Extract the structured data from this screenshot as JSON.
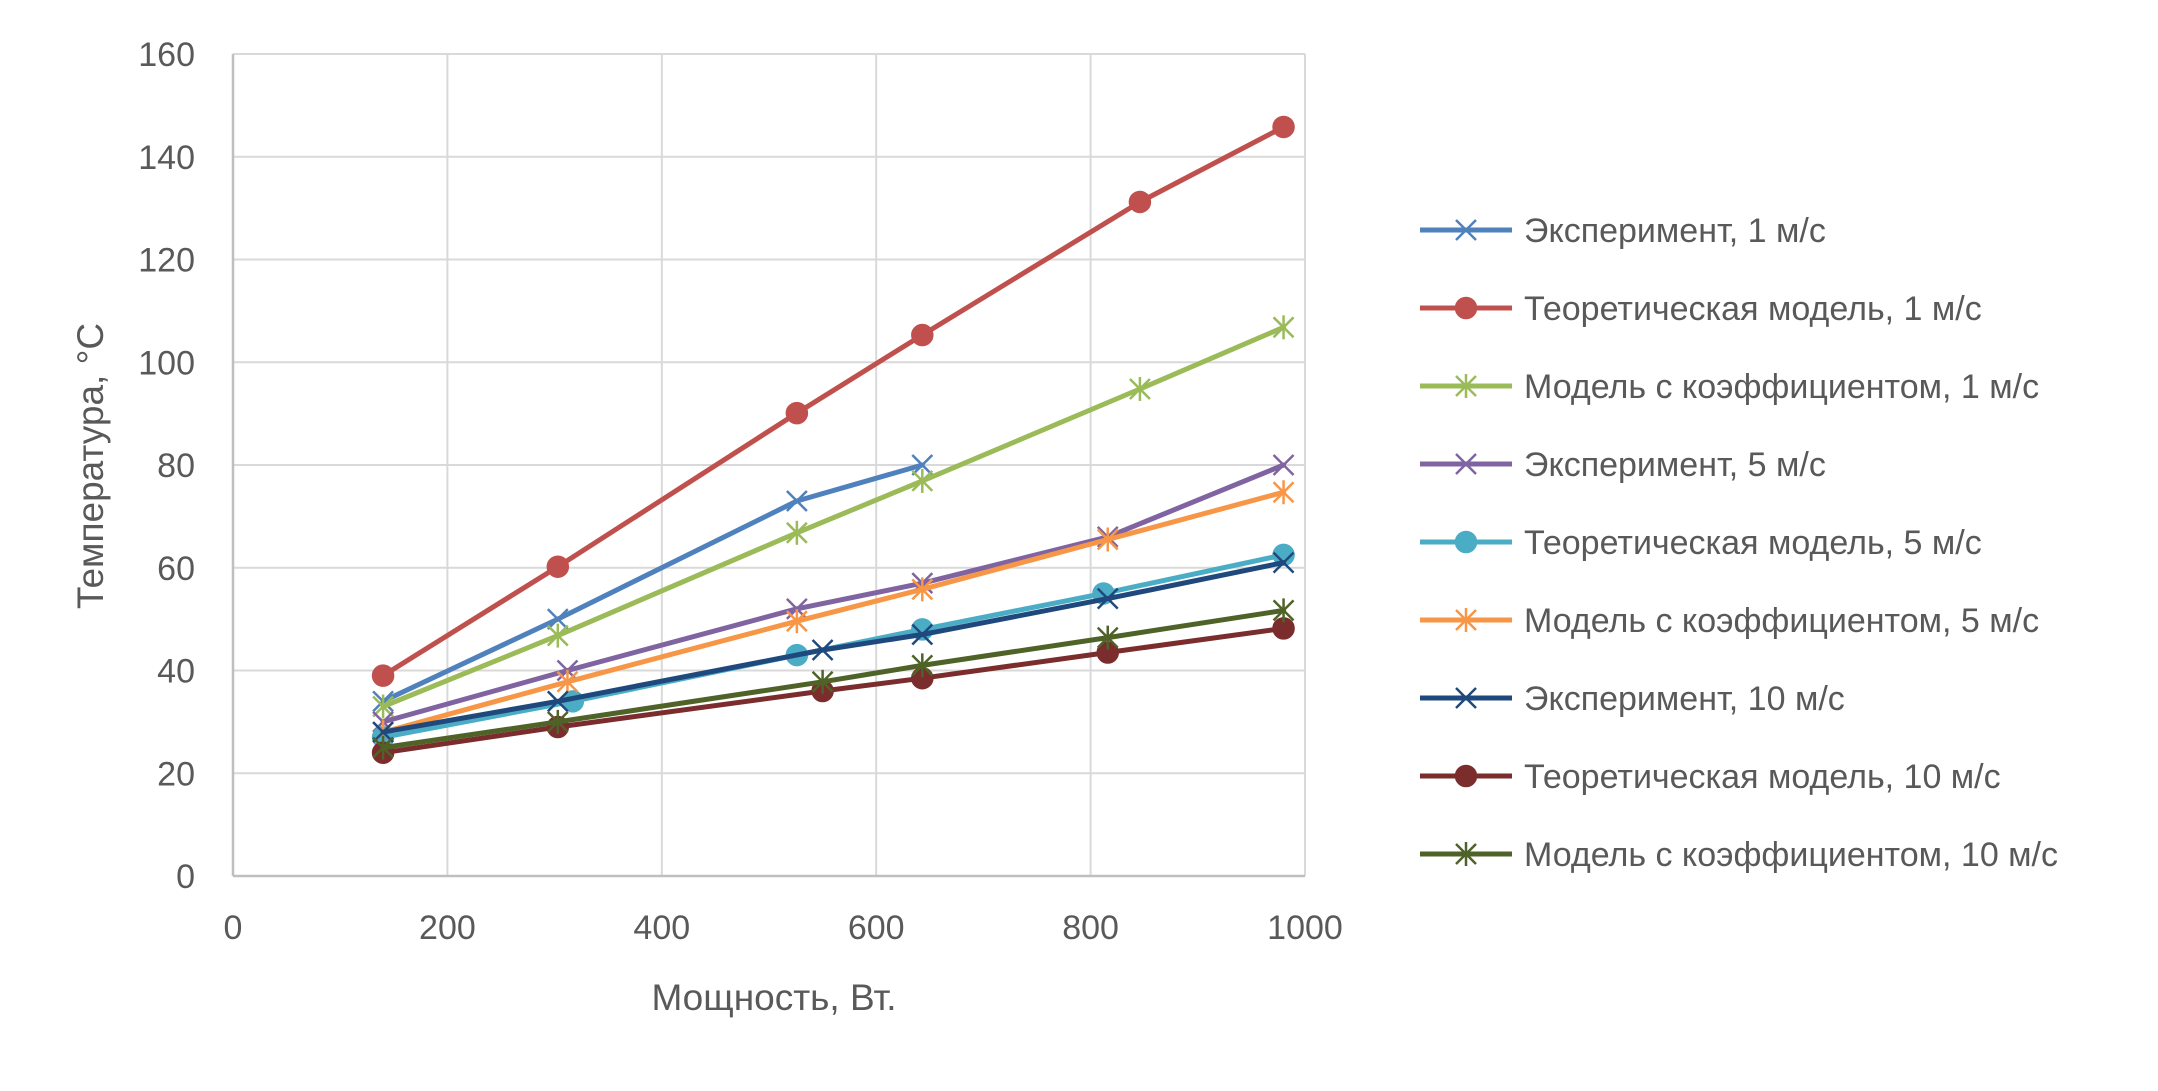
{
  "chart_data": {
    "type": "line",
    "xlabel": "Мощность, Вт.",
    "ylabel": "Температура, °C",
    "xlim": [
      0,
      1000
    ],
    "ylim": [
      0,
      160
    ],
    "x_ticks": [
      0,
      200,
      400,
      600,
      800,
      1000
    ],
    "y_ticks": [
      0,
      20,
      40,
      60,
      80,
      100,
      120,
      140,
      160
    ],
    "grid": true,
    "legend_position": "right",
    "series": [
      {
        "name": "Эксперимент, 1 м/с",
        "color": "#4F81BD",
        "marker": "x",
        "x": [
          140,
          303,
          526,
          643
        ],
        "y": [
          34,
          50,
          73,
          80
        ]
      },
      {
        "name": "Теоретическая модель, 1 м/с",
        "color": "#C0504D",
        "marker": "circle",
        "x": [
          140,
          303,
          526,
          643,
          846,
          980
        ],
        "y": [
          39,
          60.2,
          90.1,
          105.3,
          131.2,
          145.8
        ]
      },
      {
        "name": "Модель с коэффициентом, 1 м/с",
        "color": "#9BBB59",
        "marker": "star",
        "x": [
          140,
          303,
          526,
          643,
          846,
          980
        ],
        "y": [
          33,
          46.8,
          66.8,
          76.9,
          94.8,
          106.8
        ]
      },
      {
        "name": "Эксперимент, 5 м/с",
        "color": "#8064A2",
        "marker": "x",
        "x": [
          140,
          312,
          526,
          643,
          816,
          980
        ],
        "y": [
          30,
          40,
          52,
          57,
          66,
          80
        ]
      },
      {
        "name": "Теоретическая модель, 5 м/с",
        "color": "#4BACC6",
        "marker": "circle",
        "x": [
          140,
          317,
          526,
          643,
          812,
          980
        ],
        "y": [
          27,
          34,
          43,
          48,
          55,
          62.5
        ]
      },
      {
        "name": "Модель с коэффициентом, 5 м/с",
        "color": "#F79646",
        "marker": "star",
        "x": [
          140,
          312,
          526,
          643,
          816,
          980
        ],
        "y": [
          28,
          37.8,
          49.6,
          55.8,
          65.5,
          74.7
        ]
      },
      {
        "name": "Эксперимент, 10 м/с",
        "color": "#1F497D",
        "marker": "x",
        "x": [
          140,
          303,
          550,
          643,
          816,
          980
        ],
        "y": [
          28,
          34,
          44,
          47,
          54,
          61
        ]
      },
      {
        "name": "Теоретическая модель, 10 м/с",
        "color": "#7B2C2C",
        "marker": "circle",
        "x": [
          140,
          303,
          550,
          643,
          816,
          980
        ],
        "y": [
          24,
          29,
          36,
          38.5,
          43.5,
          48.2
        ]
      },
      {
        "name": "Модель с коэффициентом, 10 м/с",
        "color": "#4F6228",
        "marker": "star",
        "x": [
          140,
          303,
          550,
          643,
          816,
          980
        ],
        "y": [
          25,
          30,
          37.8,
          41,
          46.4,
          51.7
        ]
      }
    ]
  }
}
